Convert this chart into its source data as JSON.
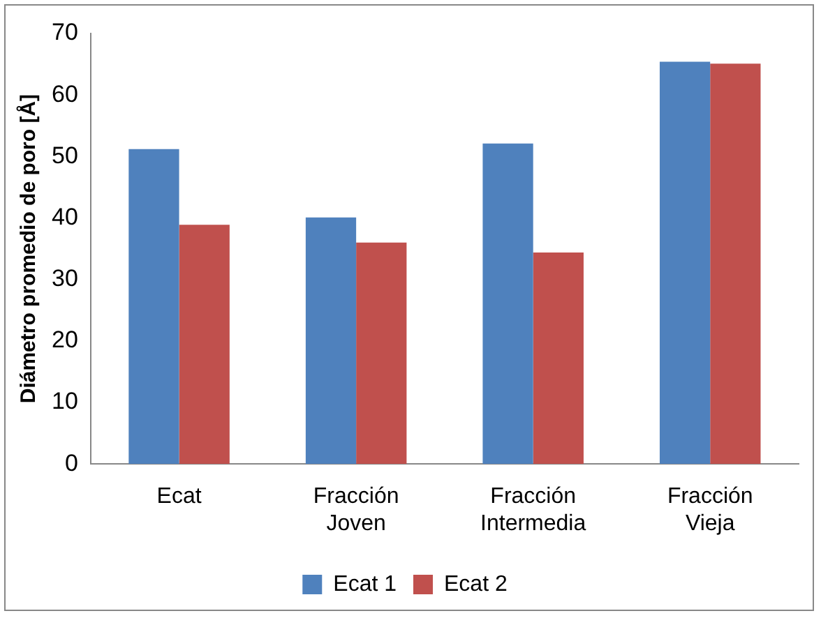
{
  "chart_data": {
    "type": "bar",
    "ylabel": "Diámetro promedio de poro [Å]",
    "categories": [
      "Ecat",
      "Fracción Joven",
      "Fracción Intermedia",
      "Fracción Vieja"
    ],
    "series": [
      {
        "name": "Ecat 1",
        "color": "#4f81bd",
        "values": [
          51.2,
          40.1,
          52.1,
          65.4
        ]
      },
      {
        "name": "Ecat 2",
        "color": "#c0504d",
        "values": [
          38.9,
          36.0,
          34.4,
          65.1
        ]
      }
    ],
    "ylim": [
      0,
      70
    ],
    "yticks": [
      0,
      10,
      20,
      30,
      40,
      50,
      60,
      70
    ],
    "grid": false,
    "legend": "bottom"
  }
}
